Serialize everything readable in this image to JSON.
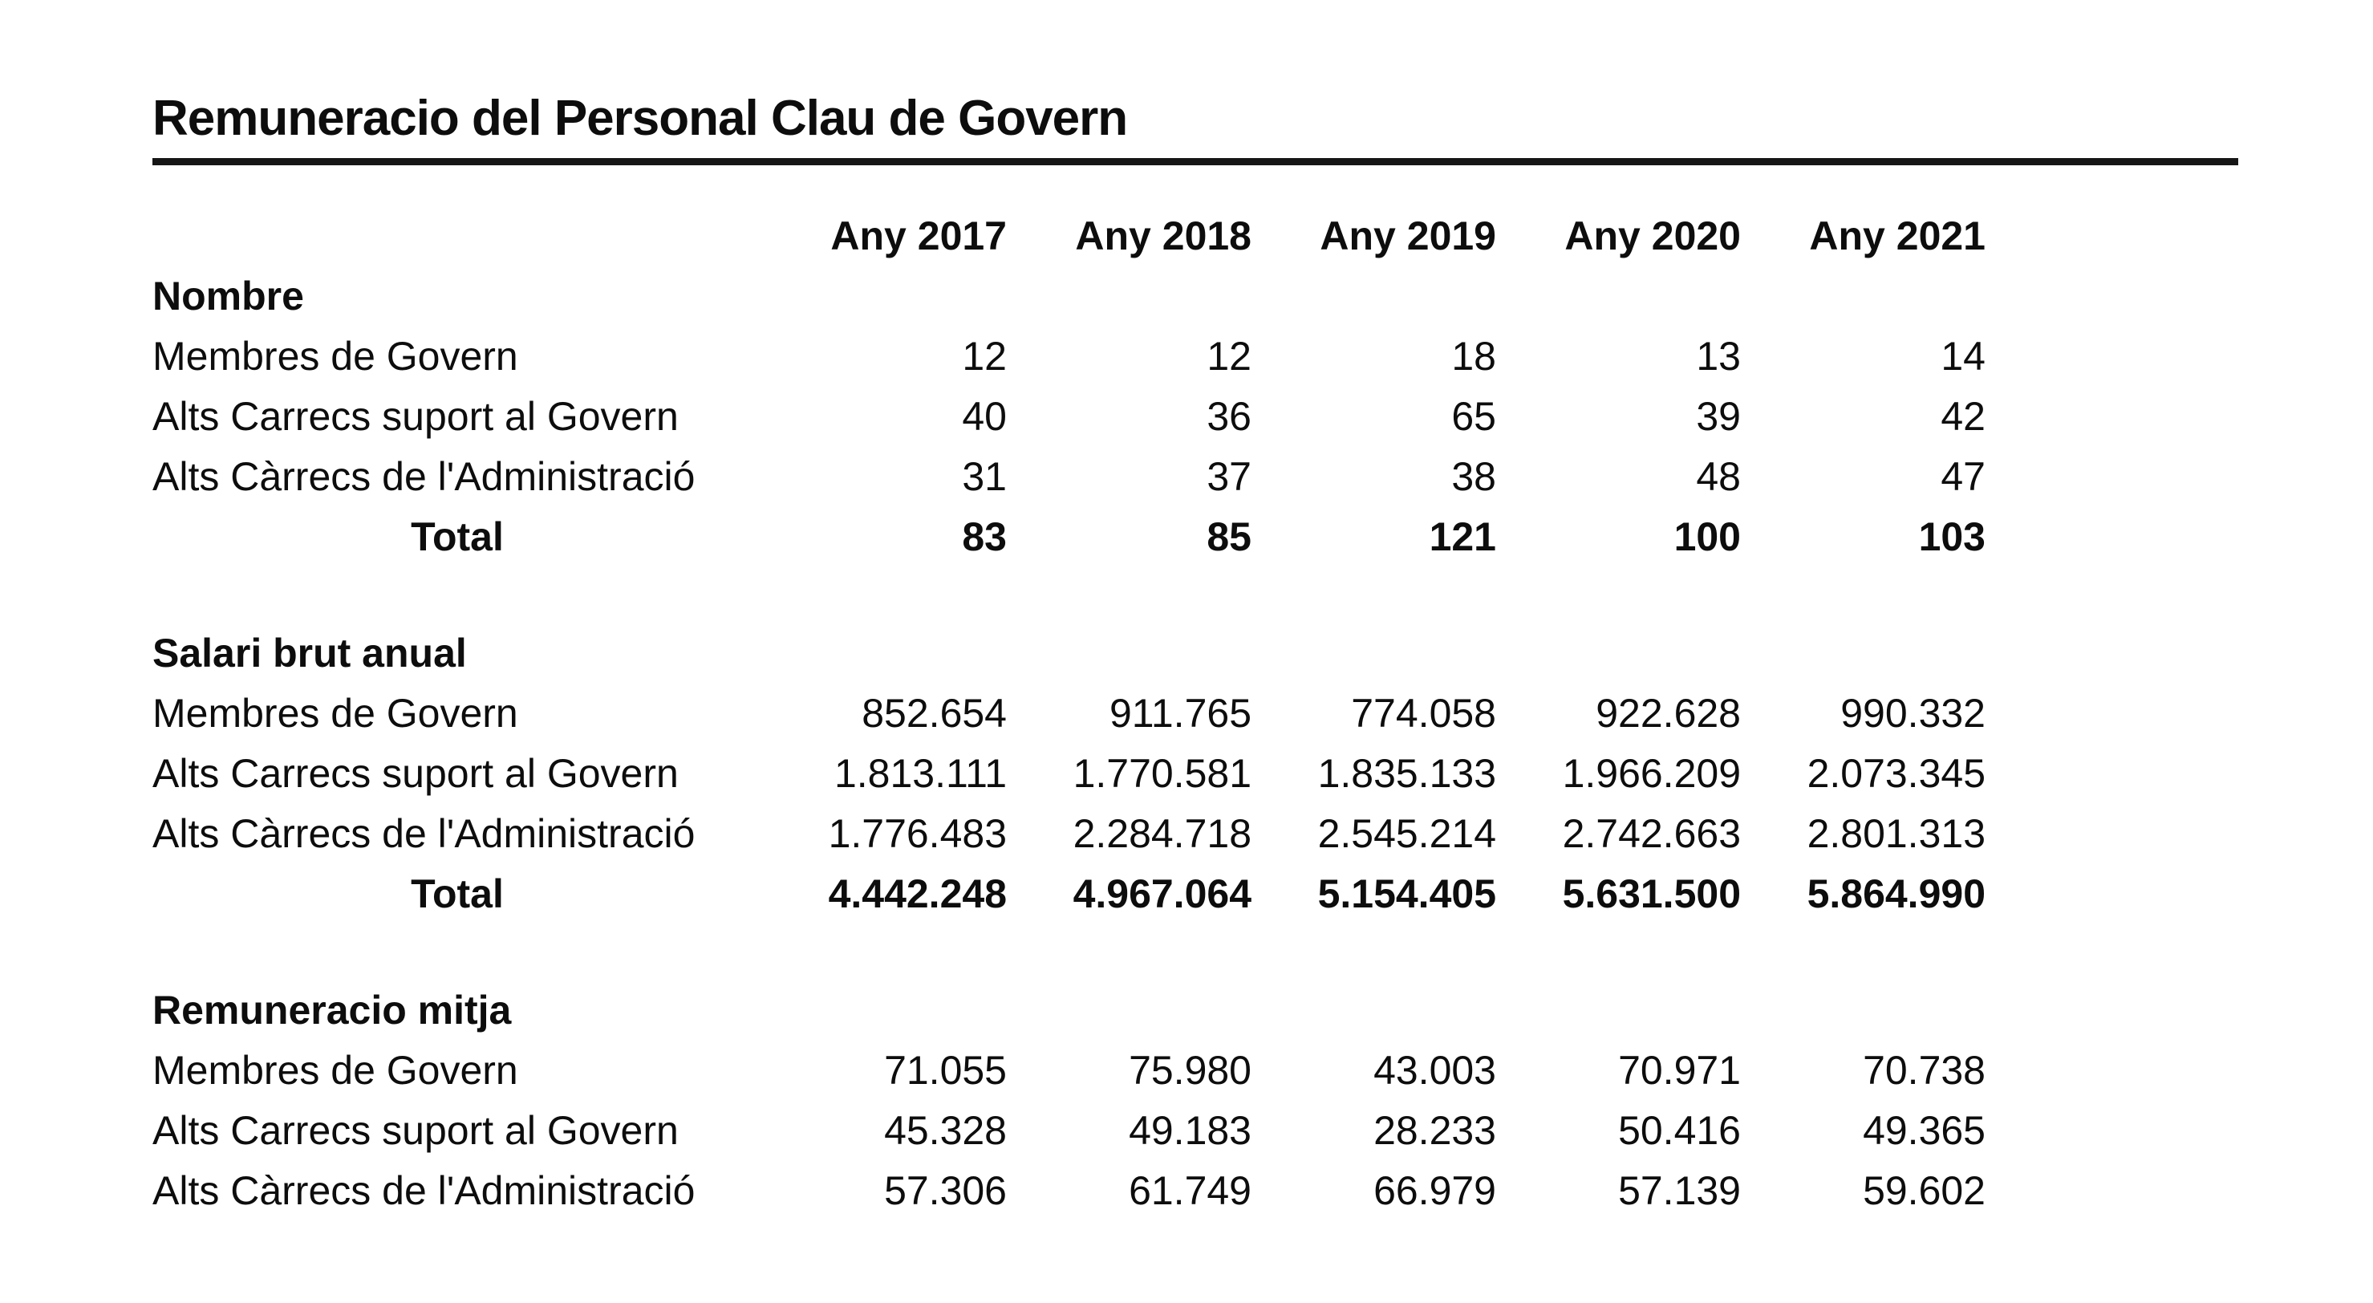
{
  "title": "Remuneracio del Personal Clau de Govern",
  "table": {
    "year_headers": [
      "Any 2017",
      "Any 2018",
      "Any 2019",
      "Any 2020",
      "Any 2021"
    ],
    "sections": [
      {
        "name": "Nombre",
        "rows": [
          {
            "label": "Membres de Govern",
            "values": [
              "12",
              "12",
              "18",
              "13",
              "14"
            ],
            "bold": false
          },
          {
            "label": "Alts Carrecs suport al Govern",
            "values": [
              "40",
              "36",
              "65",
              "39",
              "42"
            ],
            "bold": false
          },
          {
            "label": "Alts Càrrecs de l'Administració",
            "values": [
              "31",
              "37",
              "38",
              "48",
              "47"
            ],
            "bold": false
          },
          {
            "label": "Total",
            "values": [
              "83",
              "85",
              "121",
              "100",
              "103"
            ],
            "bold": true
          }
        ]
      },
      {
        "name": "Salari brut anual",
        "rows": [
          {
            "label": "Membres de Govern",
            "values": [
              "852.654",
              "911.765",
              "774.058",
              "922.628",
              "990.332"
            ],
            "bold": false
          },
          {
            "label": "Alts Carrecs suport al Govern",
            "values": [
              "1.813.111",
              "1.770.581",
              "1.835.133",
              "1.966.209",
              "2.073.345"
            ],
            "bold": false
          },
          {
            "label": "Alts Càrrecs de l'Administració",
            "values": [
              "1.776.483",
              "2.284.718",
              "2.545.214",
              "2.742.663",
              "2.801.313"
            ],
            "bold": false
          },
          {
            "label": "Total",
            "values": [
              "4.442.248",
              "4.967.064",
              "5.154.405",
              "5.631.500",
              "5.864.990"
            ],
            "bold": true
          }
        ]
      },
      {
        "name": "Remuneracio mitja",
        "rows": [
          {
            "label": "Membres de Govern",
            "values": [
              "71.055",
              "75.980",
              "43.003",
              "70.971",
              "70.738"
            ],
            "bold": false
          },
          {
            "label": "Alts Carrecs suport al Govern",
            "values": [
              "45.328",
              "49.183",
              "28.233",
              "50.416",
              "49.365"
            ],
            "bold": false
          },
          {
            "label": "Alts Càrrecs de l'Administració",
            "values": [
              "57.306",
              "61.749",
              "66.979",
              "57.139",
              "59.602"
            ],
            "bold": false
          }
        ]
      }
    ]
  }
}
